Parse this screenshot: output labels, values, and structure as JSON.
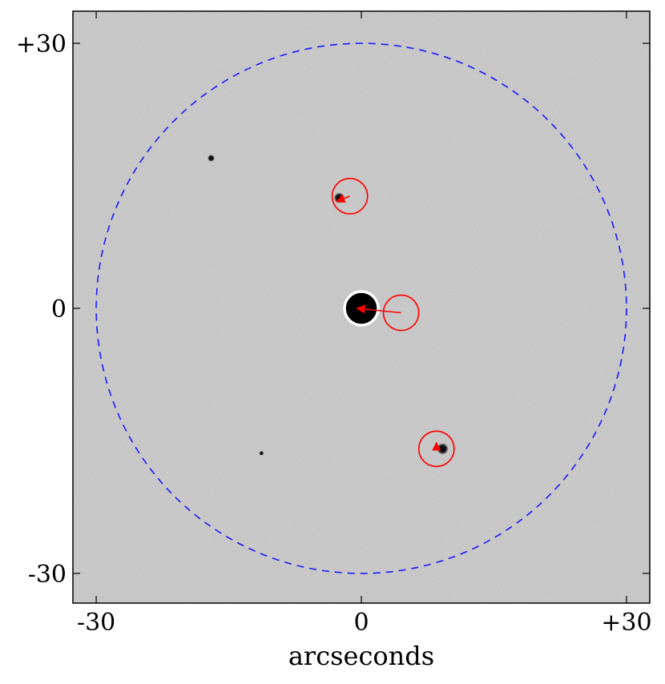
{
  "figure": {
    "xlabel": "arcseconds",
    "x_ticks": [
      {
        "value": -30,
        "label": "-30"
      },
      {
        "value": 0,
        "label": "0"
      },
      {
        "value": 30,
        "label": "+30"
      }
    ],
    "y_ticks": [
      {
        "value": 30,
        "label": "+30"
      },
      {
        "value": 0,
        "label": "0"
      },
      {
        "value": -30,
        "label": "-30"
      }
    ],
    "xlim": [
      -32.7,
      32.7
    ],
    "ylim": [
      -31.5,
      31.5
    ],
    "colors": {
      "background_gray": "#bdbdbd",
      "field_circle": "#1a1aff",
      "markers": "#ff0000",
      "target_ring": "#ffffff",
      "star": "#000000"
    },
    "field_circle": {
      "center": [
        0,
        0
      ],
      "radius_arcsec": 30,
      "style": "dashed"
    },
    "target": {
      "position": [
        0,
        0
      ],
      "ring_radius_arcsec": 1.9
    },
    "sources": [
      {
        "position": [
          -1.3,
          12.7
        ],
        "circle_radius_arcsec": 2.0,
        "arrow_to": [
          -2.8,
          12.1
        ]
      },
      {
        "position": [
          4.5,
          -0.5
        ],
        "circle_radius_arcsec": 2.0,
        "arrow_to": [
          -0.5,
          0.0
        ]
      },
      {
        "position": [
          8.5,
          -15.9
        ],
        "circle_radius_arcsec": 2.0,
        "arrow_to": [
          8.5,
          -15.2
        ]
      }
    ],
    "faint_stars": [
      {
        "position": [
          -17.0,
          17.0
        ],
        "size": 0.45
      },
      {
        "position": [
          -11.3,
          -16.4
        ],
        "size": 0.3
      },
      {
        "position": [
          -2.5,
          12.5
        ],
        "size": 0.7
      },
      {
        "position": [
          9.2,
          -15.9
        ],
        "size": 0.75
      }
    ]
  }
}
